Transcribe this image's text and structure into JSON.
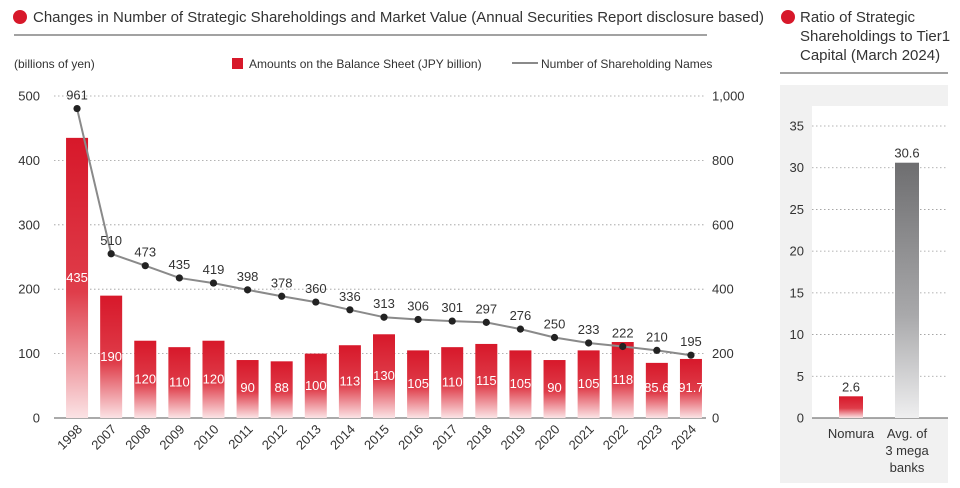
{
  "main": {
    "title": "Changes in Number of Strategic Shareholdings and Market Value (Annual Securities Report disclosure based)",
    "unit_label": "(billions of yen)",
    "legend_bar": "Amounts on the Balance Sheet (JPY billion)",
    "legend_line": "Number of Shareholding Names"
  },
  "side": {
    "title_lines": [
      "Ratio of Strategic",
      "Shareholdings to Tier1",
      "Capital (March 2024)"
    ],
    "unit_label": "(%)"
  },
  "colors": {
    "accent_red": "#d7182a",
    "line_gray": "#8a8a8a",
    "bar_gray": "#6e6e70",
    "point": "#222222"
  },
  "chart_data": [
    {
      "type": "bar",
      "categories": [
        "1998",
        "2007",
        "2008",
        "2009",
        "2010",
        "2011",
        "2012",
        "2013",
        "2014",
        "2015",
        "2016",
        "2017",
        "2018",
        "2019",
        "2020",
        "2021",
        "2022",
        "2023",
        "2024"
      ],
      "series": [
        {
          "name": "Amounts on the Balance Sheet (JPY billion)",
          "type": "bar",
          "axis": "left",
          "values": [
            435,
            190,
            120,
            110,
            120,
            90,
            88,
            100,
            113,
            130,
            105,
            110,
            115,
            105,
            90,
            105,
            118,
            85.6,
            91.7
          ],
          "labels": [
            "435",
            "190",
            "120",
            "110",
            "120",
            "90",
            "88",
            "100",
            "113",
            "130",
            "105",
            "110",
            "115",
            "105",
            "90",
            "105",
            "118",
            "85.6",
            "91.7"
          ]
        },
        {
          "name": "Number of Shareholding Names",
          "type": "line",
          "axis": "right",
          "values": [
            961,
            510,
            473,
            435,
            419,
            398,
            378,
            360,
            336,
            313,
            306,
            301,
            297,
            276,
            250,
            233,
            222,
            210,
            195
          ],
          "labels": [
            "961",
            "510",
            "473",
            "435",
            "419",
            "398",
            "378",
            "360",
            "336",
            "313",
            "306",
            "301",
            "297",
            "276",
            "250",
            "233",
            "222",
            "210",
            "195"
          ]
        }
      ],
      "ylim_left": [
        0,
        500
      ],
      "yticks_left": [
        "0",
        "100",
        "200",
        "300",
        "400",
        "500"
      ],
      "ylim_right": [
        0,
        1000
      ],
      "yticks_right": [
        "0",
        "200",
        "400",
        "600",
        "800",
        "1,000"
      ],
      "grid": true,
      "legend": "top-right"
    },
    {
      "type": "bar",
      "categories": [
        [
          "Nomura"
        ],
        [
          "Avg. of",
          "3 mega",
          "banks"
        ]
      ],
      "values": [
        2.6,
        30.6
      ],
      "labels": [
        "2.6",
        "30.6"
      ],
      "ylim": [
        0,
        35
      ],
      "yticks": [
        "0",
        "5",
        "10",
        "15",
        "20",
        "25",
        "30",
        "35"
      ],
      "grid": true
    }
  ]
}
